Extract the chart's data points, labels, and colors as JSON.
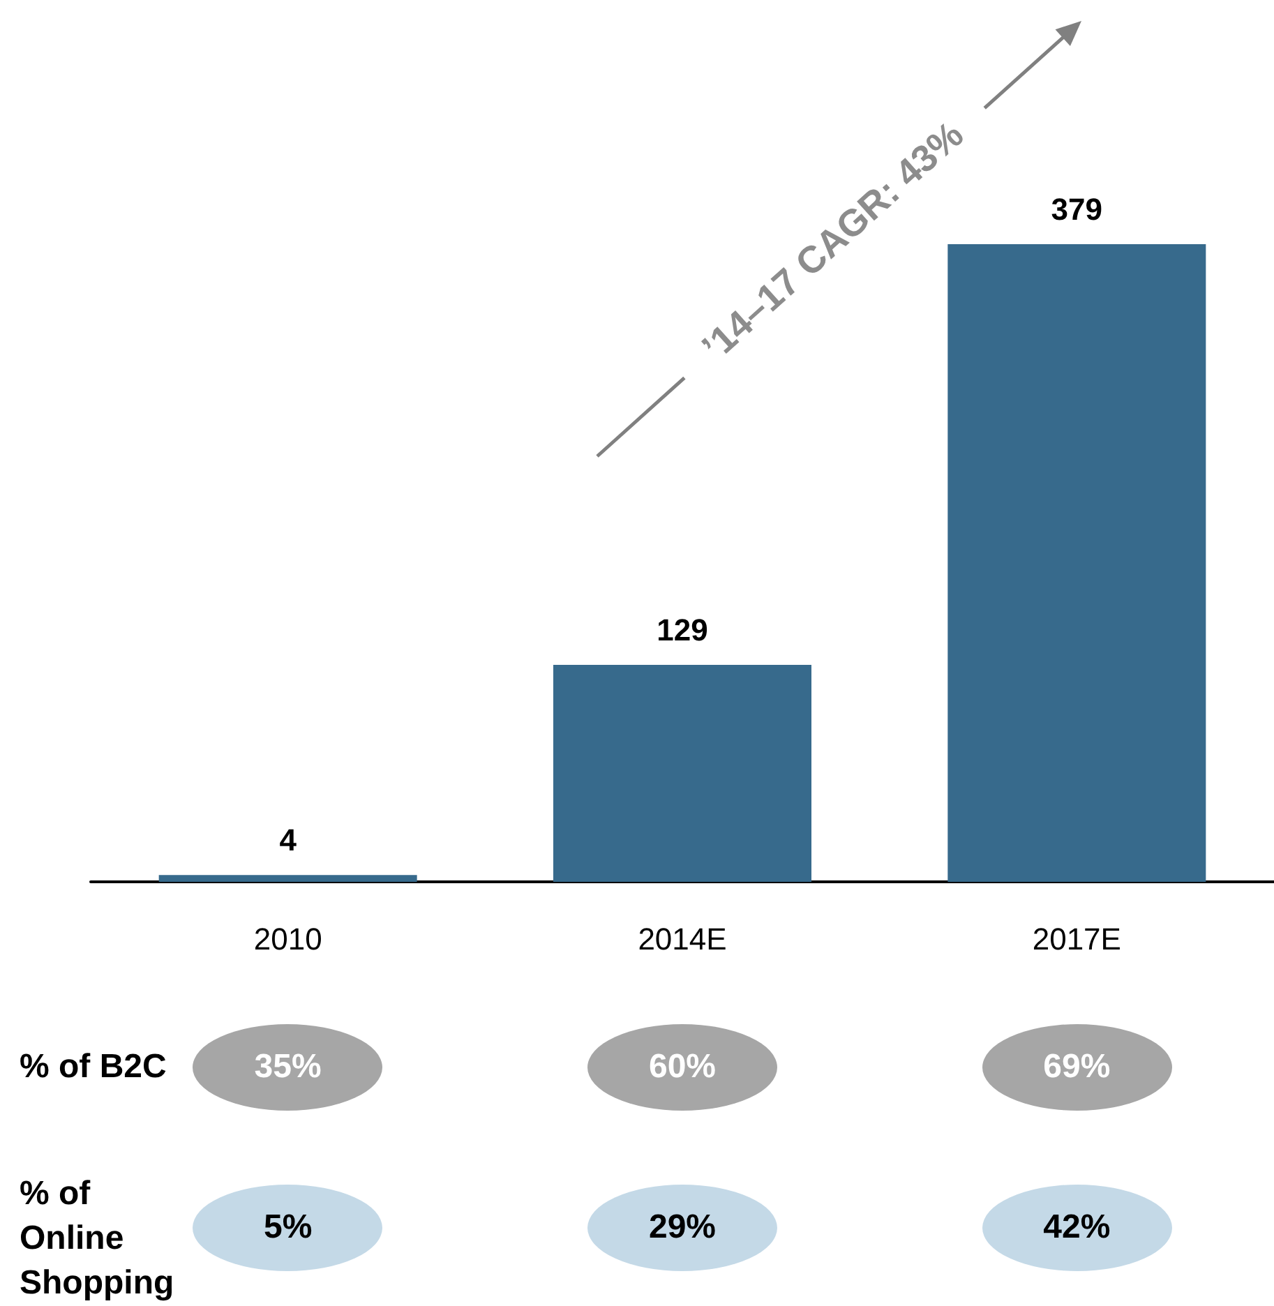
{
  "chart_data": {
    "type": "bar",
    "categories": [
      "2010",
      "2014E",
      "2017E"
    ],
    "values": [
      4,
      129,
      379
    ],
    "color": "#376a8c",
    "data_labels": true,
    "annotations": [
      "’14–17 CAGR: 43%",
      "% of B2C",
      "35%",
      "60%",
      "69%",
      "% of Online Shopping",
      "5%",
      "29%",
      "42%"
    ]
  }
}
